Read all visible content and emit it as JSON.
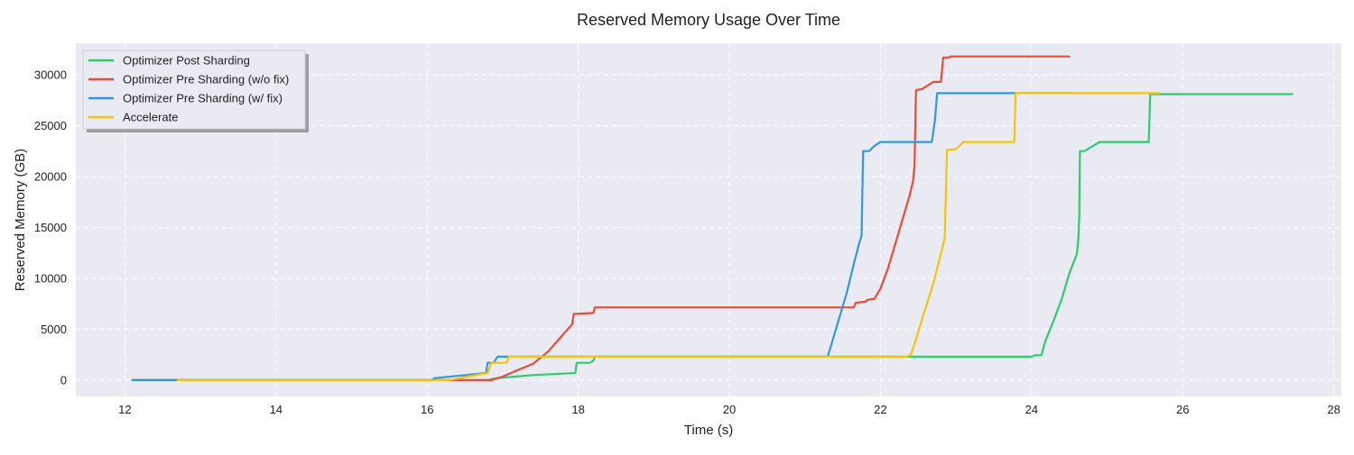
{
  "chart_data": {
    "type": "line",
    "title": "Reserved Memory Usage Over Time",
    "xlabel": "Time (s)",
    "ylabel": "Reserved Memory (GB)",
    "xlim": [
      11.35,
      28.1
    ],
    "ylim": [
      -1600,
      33100
    ],
    "xticks": [
      12,
      14,
      16,
      18,
      20,
      22,
      24,
      26,
      28
    ],
    "yticks": [
      0,
      5000,
      10000,
      15000,
      20000,
      25000,
      30000
    ],
    "grid": true,
    "legend_position": "top-left",
    "series": [
      {
        "name": "Optimizer Post Sharding",
        "color": "#2ecc71",
        "points": [
          [
            12.1,
            0
          ],
          [
            16.8,
            0
          ],
          [
            16.9,
            180
          ],
          [
            17.4,
            500
          ],
          [
            17.96,
            700
          ],
          [
            17.98,
            1700
          ],
          [
            18.15,
            1700
          ],
          [
            18.2,
            1900
          ],
          [
            18.22,
            2300
          ],
          [
            24.0,
            2300
          ],
          [
            24.05,
            2450
          ],
          [
            24.13,
            2450
          ],
          [
            24.18,
            3800
          ],
          [
            24.3,
            6000
          ],
          [
            24.4,
            8000
          ],
          [
            24.5,
            10500
          ],
          [
            24.6,
            12400
          ],
          [
            24.62,
            14000
          ],
          [
            24.63,
            16000
          ],
          [
            24.64,
            22500
          ],
          [
            24.7,
            22500
          ],
          [
            24.9,
            23400
          ],
          [
            25.55,
            23400
          ],
          [
            25.57,
            28100
          ],
          [
            27.45,
            28100
          ]
        ]
      },
      {
        "name": "Optimizer Pre Sharding (w/o fix)",
        "color": "#e74c3c",
        "points": [
          [
            12.1,
            0
          ],
          [
            16.85,
            0
          ],
          [
            17.0,
            350
          ],
          [
            17.2,
            1000
          ],
          [
            17.4,
            1600
          ],
          [
            17.6,
            2800
          ],
          [
            17.8,
            4500
          ],
          [
            17.92,
            5500
          ],
          [
            17.94,
            6500
          ],
          [
            18.2,
            6600
          ],
          [
            18.22,
            7150
          ],
          [
            21.65,
            7150
          ],
          [
            21.67,
            7600
          ],
          [
            21.8,
            7700
          ],
          [
            21.83,
            7900
          ],
          [
            21.92,
            8000
          ],
          [
            22.0,
            9000
          ],
          [
            22.1,
            11000
          ],
          [
            22.2,
            13500
          ],
          [
            22.3,
            16000
          ],
          [
            22.38,
            18000
          ],
          [
            22.43,
            19500
          ],
          [
            22.45,
            21000
          ],
          [
            22.47,
            28500
          ],
          [
            22.55,
            28600
          ],
          [
            22.7,
            29300
          ],
          [
            22.8,
            29300
          ],
          [
            22.83,
            31700
          ],
          [
            22.9,
            31700
          ],
          [
            22.93,
            31800
          ],
          [
            24.5,
            31800
          ]
        ]
      },
      {
        "name": "Optimizer Pre Sharding (w/ fix)",
        "color": "#3498db",
        "points": [
          [
            12.1,
            0
          ],
          [
            16.05,
            0
          ],
          [
            16.1,
            200
          ],
          [
            16.78,
            700
          ],
          [
            16.8,
            1700
          ],
          [
            16.88,
            1700
          ],
          [
            16.93,
            2300
          ],
          [
            21.3,
            2300
          ],
          [
            21.35,
            3500
          ],
          [
            21.45,
            6000
          ],
          [
            21.55,
            8500
          ],
          [
            21.65,
            11500
          ],
          [
            21.72,
            13500
          ],
          [
            21.75,
            14200
          ],
          [
            21.77,
            22500
          ],
          [
            21.85,
            22500
          ],
          [
            21.92,
            23000
          ],
          [
            22.0,
            23400
          ],
          [
            22.68,
            23400
          ],
          [
            22.72,
            25500
          ],
          [
            22.75,
            28200
          ],
          [
            24.55,
            28200
          ]
        ]
      },
      {
        "name": "Accelerate",
        "color": "#f1c40f",
        "points": [
          [
            12.7,
            0
          ],
          [
            16.3,
            0
          ],
          [
            16.5,
            300
          ],
          [
            16.8,
            700
          ],
          [
            16.85,
            1700
          ],
          [
            17.05,
            1700
          ],
          [
            17.08,
            2300
          ],
          [
            22.35,
            2300
          ],
          [
            22.4,
            2500
          ],
          [
            22.45,
            3500
          ],
          [
            22.55,
            6000
          ],
          [
            22.7,
            9500
          ],
          [
            22.82,
            13000
          ],
          [
            22.85,
            14000
          ],
          [
            22.88,
            22600
          ],
          [
            23.0,
            22700
          ],
          [
            23.1,
            23400
          ],
          [
            23.77,
            23400
          ],
          [
            23.79,
            28200
          ],
          [
            25.7,
            28200
          ]
        ]
      }
    ]
  }
}
